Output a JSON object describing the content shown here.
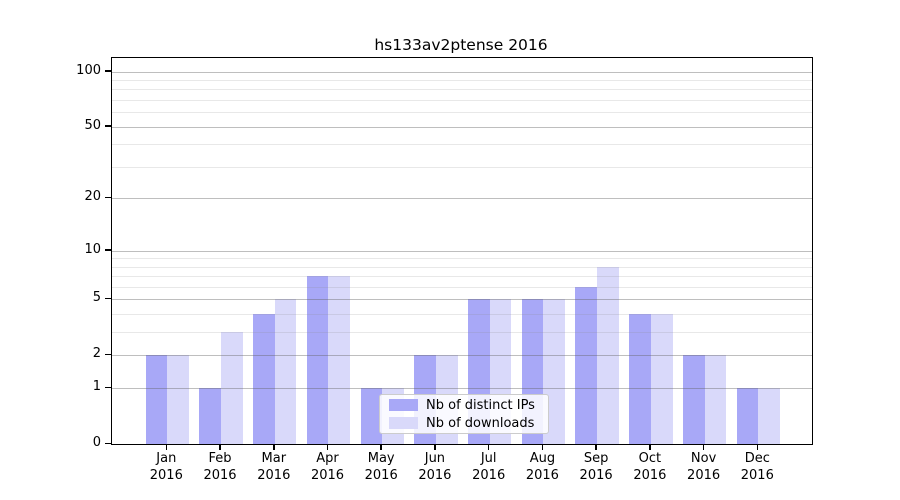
{
  "chart_data": {
    "type": "bar",
    "title": "hs133av2ptense 2016",
    "categories": [
      "Jan",
      "Feb",
      "Mar",
      "Apr",
      "May",
      "Jun",
      "Jul",
      "Aug",
      "Sep",
      "Oct",
      "Nov",
      "Dec"
    ],
    "category_year": "2016",
    "series": [
      {
        "name": "Nb of distinct IPs",
        "color": "#a8a8f7",
        "values": [
          2,
          1,
          4,
          7,
          1,
          2,
          5,
          5,
          6,
          4,
          2,
          1
        ]
      },
      {
        "name": "Nb of downloads",
        "color": "#d9d9fa",
        "values": [
          2,
          3,
          5,
          7,
          1,
          2,
          5,
          5,
          8,
          4,
          2,
          1
        ]
      }
    ],
    "xlabel": "",
    "ylabel": "",
    "y_axis": {
      "scale": "log1p",
      "major_ticks": [
        0,
        1,
        2,
        5,
        10,
        20,
        50,
        100
      ],
      "minor_ticks": [
        3,
        4,
        6,
        7,
        8,
        9,
        30,
        40,
        60,
        70,
        80,
        90
      ],
      "ylim": [
        0,
        118
      ]
    },
    "grid": "both",
    "grid_over_bars": true,
    "legend_position": "lower-center-right",
    "background_color": "#ffffff",
    "axis_color": "#000000"
  }
}
